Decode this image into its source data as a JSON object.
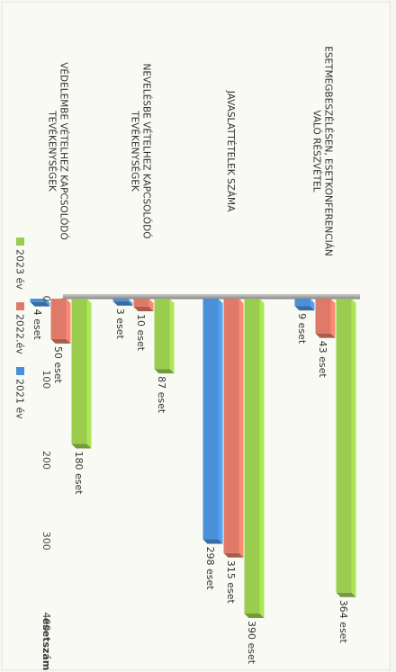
{
  "chart_data": {
    "type": "bar",
    "orientation": "horizontal",
    "categories": [
      "ESETMEGBESZÉLÉSEN, ESETKONFERENCIÁN VALÓ RÉSZVÉTEL",
      "JAVASLATTÉTELEK SZÁMA",
      "NEVELÉSBE VÉTELHEZ KAPCSOLÓDÓ TEVÉKENYSÉGEK",
      "VÉDELEMBE VÉTELHEZ KAPCSOLÓDÓ TEVÉKENYSÉGEK"
    ],
    "series": [
      {
        "name": "2023 év",
        "color": "#9acd4e",
        "values": [
          364,
          390,
          87,
          180
        ],
        "labels": [
          "364 eset",
          "390 eset",
          "87 eset",
          "180 eset"
        ]
      },
      {
        "name": "2022.év",
        "color": "#e07a68",
        "values": [
          43,
          315,
          10,
          50
        ],
        "labels": [
          "43 eset",
          "315 eset",
          "10 eset",
          "50 eset"
        ]
      },
      {
        "name": "2021 év",
        "color": "#4a90d9",
        "values": [
          9,
          298,
          3,
          4
        ],
        "labels": [
          "9 eset",
          "298 eset",
          "3 eset",
          "4 eset"
        ]
      }
    ],
    "xlabel": "esetszám",
    "ylabel": "",
    "xlim": [
      0,
      400
    ],
    "ticks": [
      "0",
      "100",
      "200",
      "300",
      "400"
    ],
    "grid": false,
    "legend_position": "bottom",
    "three_d": true
  }
}
